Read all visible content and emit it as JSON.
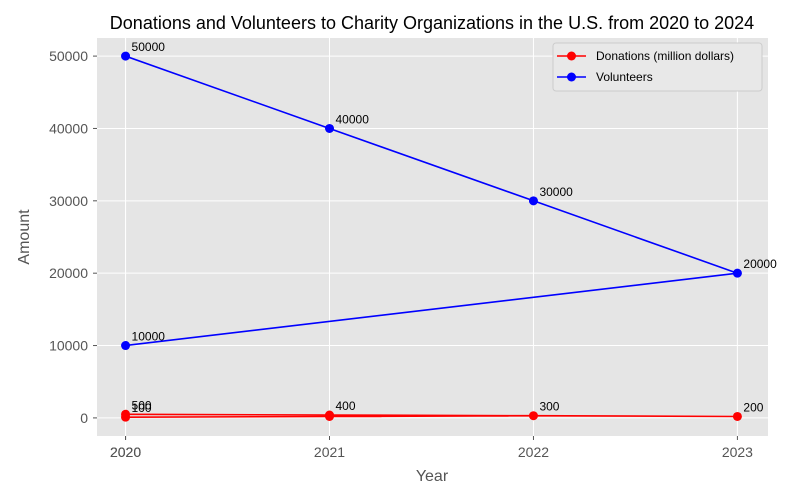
{
  "chart_data": {
    "type": "line",
    "title": "Donations and Volunteers to Charity Organizations in the U.S. from 2020 to 2024",
    "xlabel": "Year",
    "ylabel": "Amount",
    "x_ticks": [
      "2020",
      "2020",
      "2021",
      "2022",
      "2023"
    ],
    "y_ticks": [
      "0",
      "10000",
      "20000",
      "30000",
      "40000",
      "50000"
    ],
    "xlim": [
      2019.86,
      2023.15
    ],
    "ylim": [
      -2500,
      52500
    ],
    "grid": true,
    "legend_position": "top-right",
    "series": [
      {
        "name": "Donations (million dollars)",
        "color": "#ff0000",
        "points": [
          {
            "x": 2020,
            "y": 100,
            "label": "100"
          },
          {
            "x": 2021,
            "y": 200,
            "label": ""
          },
          {
            "x": 2022,
            "y": 300,
            "label": "300"
          },
          {
            "x": 2023,
            "y": 200,
            "label": "200"
          },
          {
            "x": 2021,
            "y": 400,
            "label": "400"
          },
          {
            "x": 2020,
            "y": 500,
            "label": "500"
          }
        ]
      },
      {
        "name": "Volunteers",
        "color": "#0000ff",
        "points": [
          {
            "x": 2020,
            "y": 10000,
            "label": "10000"
          },
          {
            "x": 2023,
            "y": 20000,
            "label": "20000"
          },
          {
            "x": 2022,
            "y": 30000,
            "label": "30000"
          },
          {
            "x": 2021,
            "y": 40000,
            "label": "40000"
          },
          {
            "x": 2020,
            "y": 50000,
            "label": "50000"
          }
        ]
      }
    ]
  }
}
